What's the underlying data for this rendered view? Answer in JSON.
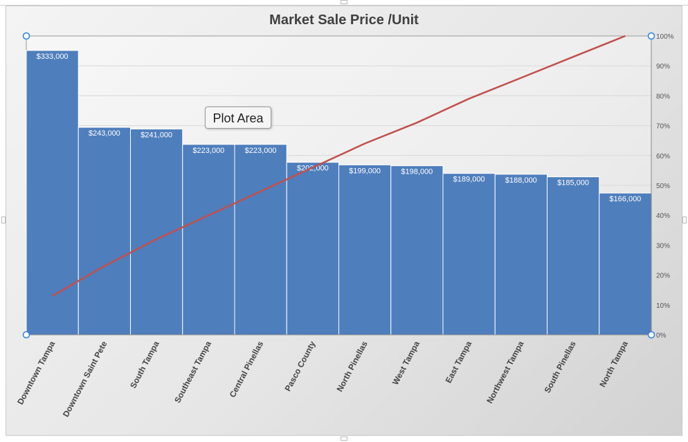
{
  "tooltip": "Plot Area",
  "colors": {
    "bar": "#4f7ebc",
    "line": "#c0504d",
    "handle": "#2f7fe0"
  },
  "chart_data": {
    "type": "bar",
    "title": "Market Sale Price /Unit",
    "categories": [
      "Downtown Tampa",
      "Downtown Saint Pete",
      "South Tampa",
      "Southeast Tampa",
      "Central Pinellas",
      "Pasco County",
      "North Pinellas",
      "West Tampa",
      "East Tampa",
      "Northwest Tampa",
      "South Pinellas",
      "North Tampa"
    ],
    "values": [
      333000,
      243000,
      241000,
      223000,
      223000,
      202000,
      199000,
      198000,
      189000,
      188000,
      185000,
      166000
    ],
    "value_labels": [
      "$333,000",
      "$243,000",
      "$241,000",
      "$223,000",
      "$223,000",
      "$202,000",
      "$199,000",
      "$198,000",
      "$189,000",
      "$188,000",
      "$185,000",
      "$166,000"
    ],
    "ylim": [
      0,
      350000
    ],
    "secondary_series": {
      "type": "line",
      "values": [
        13,
        23,
        32,
        40,
        48,
        56,
        64,
        71,
        79,
        86,
        93,
        100
      ],
      "ylim": [
        0,
        100
      ]
    },
    "secondary_ticks": [
      "0%",
      "10%",
      "20%",
      "30%",
      "40%",
      "50%",
      "60%",
      "70%",
      "80%",
      "90%",
      "100%"
    ],
    "grid": true,
    "legend": "none"
  }
}
